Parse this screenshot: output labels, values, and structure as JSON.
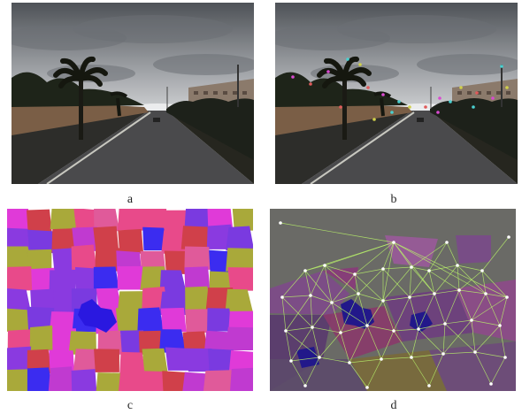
{
  "figure": {
    "panels": [
      {
        "id": "a",
        "caption": "a",
        "description_icon": "photo-street"
      },
      {
        "id": "b",
        "caption": "b",
        "description_icon": "photo-street-features"
      },
      {
        "id": "c",
        "caption": "c",
        "description_icon": "superpixel-segmentation"
      },
      {
        "id": "d",
        "caption": "d",
        "description_icon": "segmentation-graph"
      }
    ]
  },
  "colors": {
    "sky_top": "#4e5257",
    "sky_bottom": "#d6d8da",
    "road": "#4a4a4c",
    "road_line": "#c8c8c0",
    "seg_magenta": "#e03ad8",
    "seg_pink": "#e84a8a",
    "seg_blue": "#3b2cf0",
    "seg_olive": "#a9a93a",
    "seg_purple": "#8a3ae0",
    "graph_edge": "#b8f06a"
  }
}
